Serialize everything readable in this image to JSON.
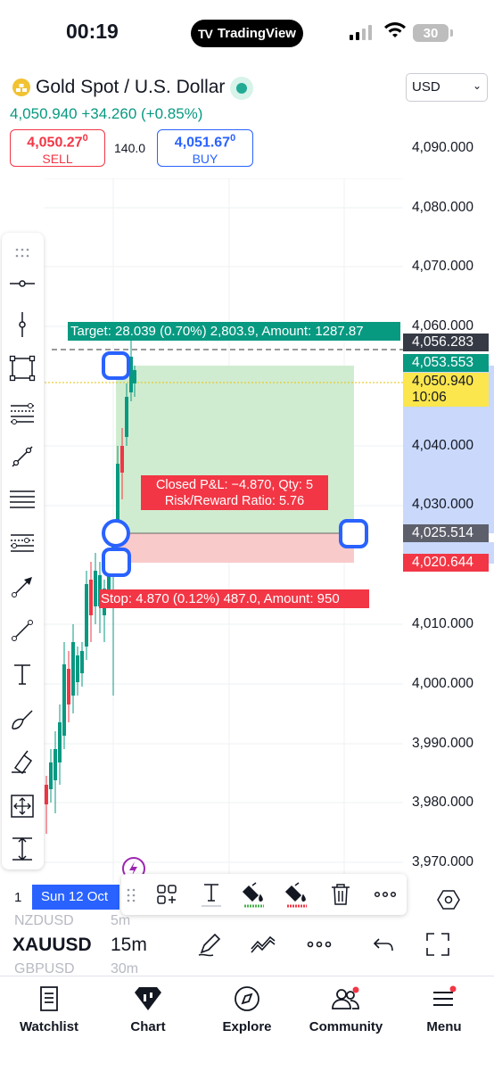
{
  "status_bar": {
    "time": "00:19",
    "app_pill": "TradingView",
    "battery": "30"
  },
  "symbol": {
    "title": "Gold Spot / U.S. Dollar",
    "price_line": "4,050.940 +34.260 (+0.85%)",
    "currency": "USD",
    "sell": {
      "price": "4,050.27",
      "price_sup": "0",
      "label": "SELL"
    },
    "buy": {
      "price": "4,051.67",
      "price_sup": "0",
      "label": "BUY"
    },
    "spread": "140.0"
  },
  "price_scale": {
    "ticks": [
      "4,090.000",
      "4,080.000",
      "4,070.000",
      "4,060.000",
      "4,040.000",
      "4,030.000",
      "4,010.000",
      "4,000.000",
      "3,990.000",
      "3,980.000",
      "3,970.000"
    ],
    "label_crosshair": "4,056.283",
    "label_target": "4,053.553",
    "label_last": "4,050.940",
    "label_countdown": "10:06",
    "label_entry": "4,025.514",
    "label_stop": "4,020.644"
  },
  "position_tool": {
    "target_text": "Target: 28.039 (0.70%) 2,803.9, Amount: 1287.87",
    "stop_text": "Stop: 4.870 (0.12%) 487.0, Amount: 950",
    "pnl_line1": "Closed P&L: −4.870, Qty: 5",
    "pnl_line2": "Risk/Reward Ratio: 5.76"
  },
  "time_axis": {
    "date_label": "Sun 12 Oct",
    "left_label": "1"
  },
  "chart_controls": {
    "symbol": "XAUUSD",
    "timeframe": "15m",
    "ghost_symbol_above": "NZDUSD",
    "ghost_symbol_below": "GBPUSD",
    "ghost_tf_above": "5m",
    "ghost_tf_below": "30m"
  },
  "tabs": [
    {
      "label": "Watchlist",
      "icon": "watchlist-icon"
    },
    {
      "label": "Chart",
      "icon": "chart-icon"
    },
    {
      "label": "Explore",
      "icon": "compass-icon"
    },
    {
      "label": "Community",
      "icon": "community-icon"
    },
    {
      "label": "Menu",
      "icon": "menu-icon"
    }
  ],
  "colors": {
    "up": "#089981",
    "down": "#f23645",
    "accent": "#2962ff",
    "highlight": "#fbe64d"
  }
}
